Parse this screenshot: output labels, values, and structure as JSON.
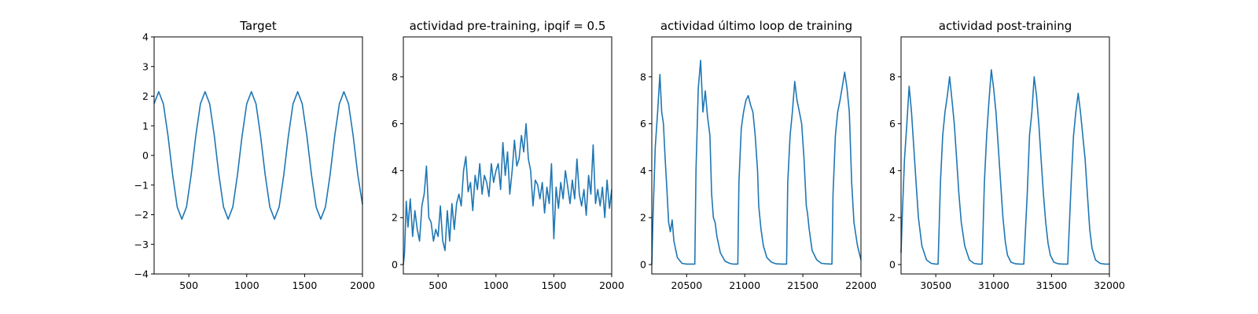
{
  "chart_data": [
    {
      "type": "line",
      "title": "Target",
      "xlabel": "",
      "ylabel": "",
      "xlim": [
        200,
        2000
      ],
      "ylim": [
        -4,
        4
      ],
      "xticks": [
        500,
        1000,
        1500,
        2000
      ],
      "yticks": [
        -4,
        -3,
        -2,
        -1,
        0,
        1,
        2,
        3,
        4
      ],
      "grid": false,
      "color": "#1f77b4",
      "series": [
        {
          "x": [
            200,
            240,
            280,
            320,
            360,
            400,
            440,
            480,
            520,
            560,
            600,
            640,
            680,
            720,
            760,
            800,
            840,
            880,
            920,
            960,
            1000,
            1040,
            1080,
            1120,
            1160,
            1200,
            1240,
            1280,
            1320,
            1360,
            1400,
            1440,
            1480,
            1520,
            1560,
            1600,
            1640,
            1680,
            1720,
            1760,
            1800,
            1840,
            1880,
            1920,
            1960,
            2000
          ],
          "values": [
            1.75,
            2.15,
            1.74,
            0.66,
            -0.66,
            -1.74,
            -2.15,
            -1.74,
            -0.66,
            0.66,
            1.74,
            2.15,
            1.74,
            0.66,
            -0.66,
            -1.74,
            -2.15,
            -1.74,
            -0.66,
            0.66,
            1.74,
            2.15,
            1.74,
            0.66,
            -0.66,
            -1.74,
            -2.15,
            -1.74,
            -0.66,
            0.66,
            1.74,
            2.15,
            1.74,
            0.66,
            -0.66,
            -1.74,
            -2.15,
            -1.74,
            -0.66,
            0.66,
            1.74,
            2.15,
            1.74,
            0.66,
            -0.66,
            -1.65
          ]
        }
      ]
    },
    {
      "type": "line",
      "title": "actividad pre-training, ipqif = 0.5",
      "xlabel": "",
      "ylabel": "",
      "xlim": [
        200,
        2000
      ],
      "ylim": [
        -0.4,
        9.7
      ],
      "xticks": [
        500,
        1000,
        1500,
        2000
      ],
      "yticks": [
        0,
        2,
        4,
        6,
        8
      ],
      "grid": false,
      "color": "#1f77b4",
      "series": [
        {
          "x": [
            200,
            210,
            225,
            240,
            260,
            280,
            300,
            320,
            340,
            360,
            380,
            400,
            420,
            440,
            460,
            480,
            500,
            520,
            540,
            560,
            580,
            600,
            620,
            640,
            660,
            680,
            700,
            720,
            740,
            760,
            780,
            800,
            820,
            840,
            860,
            880,
            900,
            920,
            940,
            960,
            980,
            1000,
            1020,
            1040,
            1060,
            1080,
            1100,
            1120,
            1140,
            1160,
            1180,
            1200,
            1220,
            1240,
            1260,
            1280,
            1300,
            1320,
            1340,
            1360,
            1380,
            1400,
            1420,
            1440,
            1460,
            1480,
            1500,
            1520,
            1540,
            1560,
            1580,
            1600,
            1620,
            1640,
            1660,
            1680,
            1700,
            1720,
            1740,
            1760,
            1780,
            1800,
            1820,
            1840,
            1860,
            1880,
            1900,
            1920,
            1940,
            1960,
            1980,
            2000
          ],
          "values": [
            0.0,
            0.5,
            2.7,
            1.6,
            2.8,
            1.2,
            2.3,
            1.5,
            1.0,
            2.5,
            3.0,
            4.2,
            2.0,
            1.8,
            1.0,
            1.5,
            1.2,
            2.5,
            1.0,
            0.6,
            2.3,
            1.0,
            2.6,
            1.5,
            2.6,
            3.0,
            2.5,
            4.0,
            4.6,
            3.1,
            3.5,
            2.3,
            3.8,
            3.2,
            4.3,
            3.0,
            3.8,
            3.5,
            2.9,
            4.3,
            3.5,
            4.0,
            4.3,
            3.2,
            5.2,
            3.8,
            4.8,
            3.0,
            4.0,
            5.3,
            4.2,
            4.5,
            5.5,
            4.8,
            6.0,
            4.5,
            4.0,
            2.5,
            3.6,
            3.4,
            2.8,
            3.5,
            2.2,
            3.3,
            2.6,
            4.3,
            1.1,
            3.3,
            2.4,
            3.5,
            2.8,
            4.0,
            3.3,
            2.6,
            3.6,
            2.8,
            4.5,
            3.0,
            2.5,
            3.2,
            2.1,
            3.8,
            3.0,
            5.1,
            2.6,
            3.2,
            2.5,
            3.3,
            2.0,
            3.6,
            2.4,
            3.2
          ]
        }
      ]
    },
    {
      "type": "line",
      "title": "actividad último loop de training",
      "xlabel": "",
      "ylabel": "",
      "xlim": [
        20200,
        22000
      ],
      "ylim": [
        -0.4,
        9.7
      ],
      "xticks": [
        20500,
        21000,
        21500,
        22000
      ],
      "yticks": [
        0,
        2,
        4,
        6,
        8
      ],
      "grid": false,
      "color": "#1f77b4",
      "series": [
        {
          "x": [
            20200,
            20210,
            20230,
            20250,
            20270,
            20285,
            20300,
            20315,
            20330,
            20345,
            20360,
            20375,
            20390,
            20420,
            20460,
            20500,
            20540,
            20570,
            20580,
            20600,
            20620,
            20640,
            20660,
            20680,
            20700,
            20715,
            20730,
            20745,
            20760,
            20790,
            20830,
            20870,
            20900,
            20940,
            20950,
            20970,
            20990,
            21010,
            21030,
            21050,
            21070,
            21090,
            21110,
            21120,
            21140,
            21160,
            21190,
            21230,
            21270,
            21320,
            21360,
            21370,
            21390,
            21410,
            21430,
            21450,
            21470,
            21490,
            21510,
            21530,
            21540,
            21555,
            21580,
            21620,
            21660,
            21700,
            21750,
            21760,
            21780,
            21800,
            21820,
            21840,
            21860,
            21880,
            21900,
            21920,
            21940,
            21970,
            22000
          ],
          "values": [
            0.0,
            2.0,
            5.0,
            6.5,
            8.1,
            6.5,
            6.0,
            4.5,
            3.2,
            1.8,
            1.4,
            1.9,
            1.0,
            0.3,
            0.05,
            0.02,
            0.02,
            0.02,
            4.0,
            7.5,
            8.7,
            6.5,
            7.4,
            6.3,
            5.5,
            3.0,
            2.0,
            1.8,
            1.2,
            0.5,
            0.15,
            0.05,
            0.02,
            0.02,
            3.5,
            5.8,
            6.5,
            7.0,
            7.2,
            6.8,
            6.5,
            5.5,
            4.0,
            2.5,
            1.5,
            0.8,
            0.3,
            0.1,
            0.03,
            0.02,
            0.02,
            3.5,
            5.5,
            6.5,
            7.8,
            7.0,
            6.5,
            6.0,
            4.5,
            2.5,
            2.2,
            1.5,
            0.6,
            0.2,
            0.05,
            0.03,
            0.02,
            3.0,
            5.5,
            6.5,
            7.0,
            7.6,
            8.2,
            7.5,
            6.5,
            3.5,
            1.8,
            0.8,
            0.2
          ]
        }
      ]
    },
    {
      "type": "line",
      "title": "actividad post-training",
      "xlabel": "",
      "ylabel": "",
      "xlim": [
        30200,
        32000
      ],
      "ylim": [
        -0.4,
        9.7
      ],
      "xticks": [
        30500,
        31000,
        31500,
        32000
      ],
      "yticks": [
        0,
        2,
        4,
        6,
        8
      ],
      "grid": false,
      "color": "#1f77b4",
      "series": [
        {
          "x": [
            30200,
            30210,
            30230,
            30250,
            30270,
            30290,
            30310,
            30330,
            30350,
            30380,
            30420,
            30460,
            30500,
            30520,
            30540,
            30560,
            30580,
            30600,
            30620,
            30640,
            30660,
            30680,
            30700,
            30720,
            30750,
            30790,
            30830,
            30870,
            30900,
            30920,
            30940,
            30960,
            30980,
            31000,
            31020,
            31040,
            31060,
            31080,
            31100,
            31120,
            31150,
            31190,
            31230,
            31260,
            31290,
            31310,
            31330,
            31350,
            31370,
            31390,
            31410,
            31430,
            31450,
            31470,
            31490,
            31520,
            31560,
            31600,
            31640,
            31670,
            31690,
            31710,
            31730,
            31750,
            31770,
            31790,
            31810,
            31830,
            31850,
            31880,
            31920,
            31960,
            32000
          ],
          "values": [
            0.5,
            2.0,
            4.5,
            6.0,
            7.6,
            6.5,
            5.0,
            3.5,
            2.0,
            0.8,
            0.2,
            0.05,
            0.02,
            0.02,
            3.5,
            5.5,
            6.5,
            7.2,
            8.0,
            7.0,
            6.0,
            4.5,
            3.0,
            1.8,
            0.8,
            0.2,
            0.05,
            0.02,
            0.02,
            3.5,
            5.5,
            7.0,
            8.3,
            7.5,
            6.5,
            5.0,
            3.5,
            2.0,
            1.0,
            0.4,
            0.1,
            0.03,
            0.02,
            0.02,
            3.0,
            5.5,
            6.5,
            8.0,
            7.2,
            6.0,
            4.5,
            3.0,
            1.8,
            0.9,
            0.4,
            0.1,
            0.03,
            0.02,
            0.02,
            3.5,
            5.5,
            6.5,
            7.3,
            6.5,
            5.5,
            4.5,
            3.0,
            1.5,
            0.7,
            0.2,
            0.05,
            0.02,
            0.02
          ]
        }
      ]
    }
  ]
}
